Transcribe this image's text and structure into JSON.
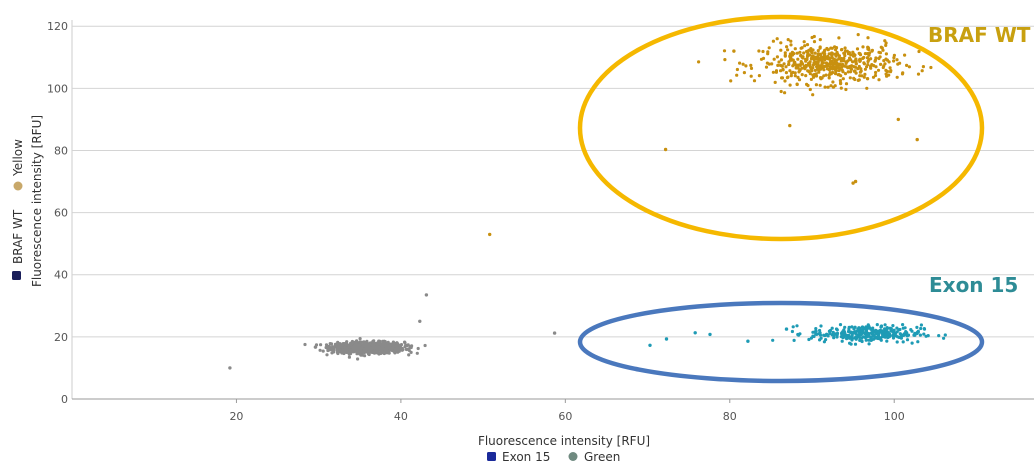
{
  "chart_data": {
    "type": "scatter",
    "title": "",
    "xlabel": "Fluorescence intensity [RFU]",
    "ylabel": "Fluorescence intensity [RFU]",
    "ylabel_channel": "Yellow",
    "ylabel_target": "BRAF WT",
    "xlim": [
      0,
      117
    ],
    "ylim": [
      0,
      122
    ],
    "xticks": [
      20,
      40,
      60,
      80,
      100
    ],
    "yticks": [
      0,
      20,
      40,
      60,
      80,
      100,
      120
    ],
    "grid": "horizontal",
    "legend": {
      "placement": "bottom-center",
      "items": [
        {
          "label": "Exon 15",
          "color": "#1a2a9a"
        },
        {
          "label": "Green",
          "color": "#6f8a80"
        }
      ]
    },
    "colors": {
      "gray_cluster": "#8a8a8a",
      "orange_cluster": "#c8900f",
      "blue_cluster": "#1e9bb5",
      "yellow_ring": "#f5b800",
      "blue_ring": "#4a78bd",
      "braf_label": "#c8a010",
      "exon_label": "#2e8c96",
      "ylabel_marker_yellow": "#c8a86a",
      "ylabel_marker_navy": "#1a1f5a"
    },
    "annotations": [
      {
        "text": "BRAF WT",
        "color": "#c8a010"
      },
      {
        "text": "Exon 15",
        "color": "#2e8c96"
      }
    ],
    "clusters": [
      {
        "group": "gray",
        "center": [
          36,
          16.5
        ],
        "spread": [
          2.2,
          0.9
        ],
        "count": 900
      },
      {
        "group": "orange",
        "center": [
          92,
          108
        ],
        "spread": [
          4.2,
          3.2
        ],
        "count": 520
      },
      {
        "group": "blue",
        "center": [
          96.5,
          21
        ],
        "spread": [
          3.4,
          1.4
        ],
        "count": 300
      }
    ],
    "outliers": [
      {
        "group": "gray",
        "x": 19.2,
        "y": 10
      },
      {
        "group": "gray",
        "x": 43.1,
        "y": 33.5
      },
      {
        "group": "gray",
        "x": 42.3,
        "y": 25
      },
      {
        "group": "gray",
        "x": 58.7,
        "y": 21.2
      },
      {
        "group": "orange",
        "x": 50.8,
        "y": 53
      },
      {
        "group": "orange",
        "x": 72.2,
        "y": 80.3
      },
      {
        "group": "orange",
        "x": 95,
        "y": 69.5
      },
      {
        "group": "orange",
        "x": 95.3,
        "y": 70
      },
      {
        "group": "orange",
        "x": 100.5,
        "y": 90
      },
      {
        "group": "orange",
        "x": 102.8,
        "y": 83.5
      },
      {
        "group": "orange",
        "x": 87.3,
        "y": 88
      },
      {
        "group": "orange",
        "x": 80.5,
        "y": 112
      },
      {
        "group": "blue",
        "x": 70.3,
        "y": 17.3
      },
      {
        "group": "blue",
        "x": 72.3,
        "y": 19.3
      },
      {
        "group": "blue",
        "x": 75.8,
        "y": 21.3
      },
      {
        "group": "blue",
        "x": 77.6,
        "y": 20.8
      },
      {
        "group": "blue",
        "x": 82.2,
        "y": 18.6
      },
      {
        "group": "blue",
        "x": 86.9,
        "y": 22.5
      }
    ]
  }
}
